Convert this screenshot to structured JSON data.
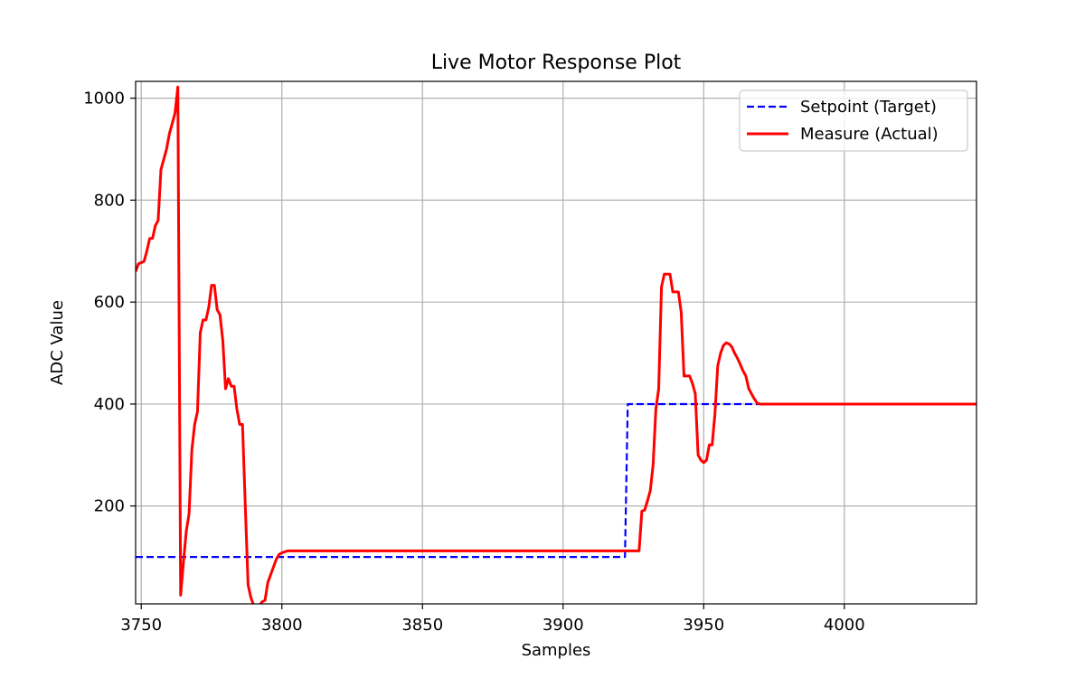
{
  "chart_data": {
    "type": "line",
    "title": "Live Motor Response Plot",
    "xlabel": "Samples",
    "ylabel": "ADC Value",
    "xlim": [
      3748,
      4047
    ],
    "ylim": [
      8,
      1033
    ],
    "xticks": [
      3750,
      3800,
      3850,
      3900,
      3950,
      4000
    ],
    "yticks": [
      200,
      400,
      600,
      800,
      1000
    ],
    "grid": true,
    "legend_position": "top-right",
    "series": [
      {
        "name": "Setpoint (Target)",
        "color": "#0000ff",
        "style": "dashed",
        "x": [
          3748,
          3922,
          3923,
          4047
        ],
        "y": [
          100,
          100,
          400,
          400
        ]
      },
      {
        "name": "Measure (Actual)",
        "color": "#ff0000",
        "style": "solid",
        "x": [
          3748,
          3749,
          3751,
          3752,
          3753,
          3754,
          3755,
          3756,
          3757,
          3758,
          3759,
          3760,
          3761,
          3762,
          3763,
          3764,
          3765,
          3766,
          3767,
          3768,
          3769,
          3770,
          3771,
          3772,
          3773,
          3774,
          3775,
          3776,
          3777,
          3778,
          3779,
          3780,
          3781,
          3782,
          3783,
          3784,
          3785,
          3786,
          3787,
          3788,
          3789,
          3790,
          3791,
          3792,
          3793,
          3794,
          3795,
          3796,
          3797,
          3798,
          3799,
          3800,
          3801,
          3802,
          3803,
          3804,
          3805,
          3806,
          3810,
          3850,
          3900,
          3920,
          3925,
          3926,
          3927,
          3928,
          3929,
          3930,
          3931,
          3932,
          3933,
          3934,
          3935,
          3936,
          3937,
          3938,
          3939,
          3940,
          3941,
          3942,
          3943,
          3944,
          3945,
          3946,
          3947,
          3948,
          3949,
          3950,
          3951,
          3952,
          3953,
          3954,
          3955,
          3956,
          3957,
          3958,
          3959,
          3960,
          3961,
          3962,
          3963,
          3964,
          3965,
          3966,
          3967,
          3968,
          3969,
          3970,
          3971,
          3972,
          3980,
          4000,
          4047
        ],
        "y": [
          660,
          675,
          680,
          700,
          725,
          725,
          750,
          760,
          860,
          880,
          900,
          930,
          950,
          970,
          1022,
          25,
          90,
          150,
          185,
          310,
          360,
          385,
          540,
          565,
          565,
          590,
          633,
          633,
          585,
          575,
          525,
          430,
          450,
          435,
          435,
          390,
          360,
          360,
          200,
          45,
          20,
          5,
          3,
          5,
          12,
          15,
          50,
          65,
          80,
          95,
          105,
          108,
          110,
          112,
          112,
          112,
          112,
          112,
          112,
          112,
          112,
          112,
          112,
          112,
          112,
          190,
          192,
          210,
          230,
          280,
          390,
          430,
          630,
          655,
          655,
          655,
          620,
          620,
          620,
          580,
          455,
          455,
          455,
          440,
          420,
          300,
          290,
          285,
          290,
          320,
          320,
          380,
          475,
          500,
          515,
          520,
          518,
          512,
          500,
          490,
          478,
          465,
          455,
          430,
          420,
          410,
          402,
          400,
          400,
          400,
          400,
          400,
          400
        ],
        "note": ""
      }
    ]
  }
}
